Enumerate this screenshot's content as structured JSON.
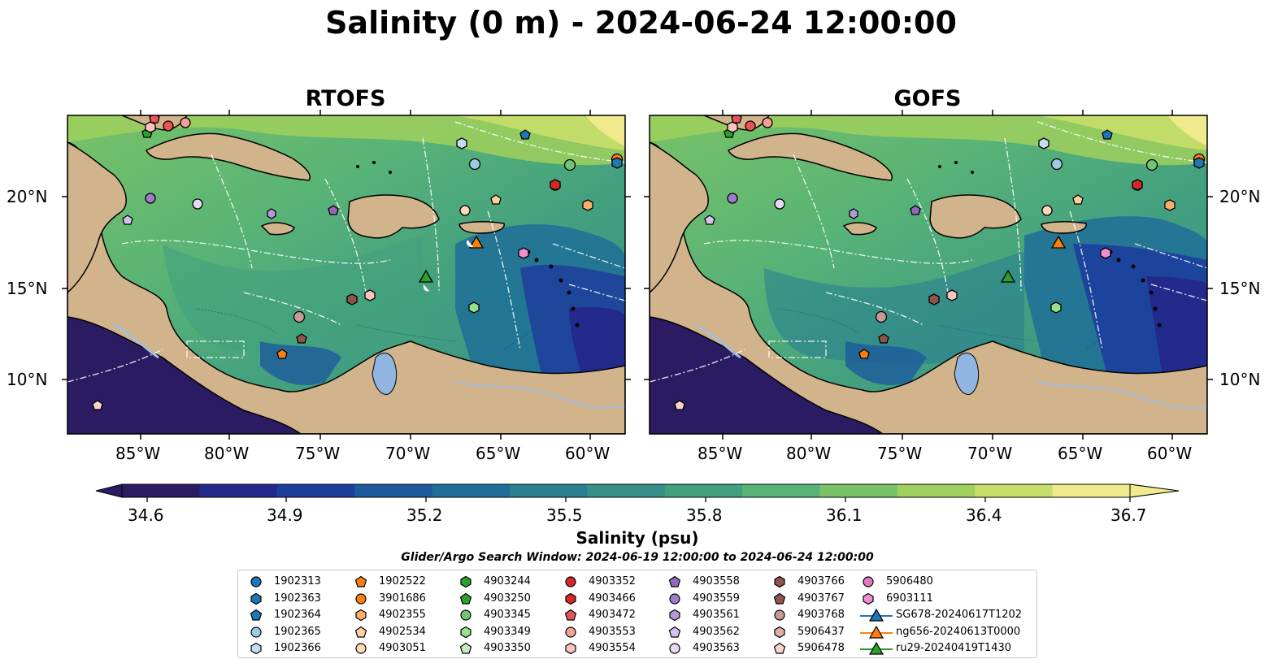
{
  "title": "Salinity (0 m) - 2024-06-24 12:00:00",
  "panels": [
    {
      "title": "RTOFS"
    },
    {
      "title": "GOFS"
    }
  ],
  "axes": {
    "lon_ticks": [
      "85°W",
      "80°W",
      "75°W",
      "70°W",
      "65°W",
      "60°W"
    ],
    "lat_ticks": [
      "20°N",
      "15°N",
      "10°N"
    ]
  },
  "colorbar": {
    "label": "Salinity (psu)",
    "ticks": [
      "34.6",
      "34.9",
      "35.2",
      "35.5",
      "35.8",
      "36.1",
      "36.4",
      "36.7"
    ],
    "min": 34.6,
    "max": 36.7
  },
  "search_window": "Glider/Argo Search Window: 2024-06-19 12:00:00 to 2024-06-24 12:00:00",
  "legend": {
    "columns": [
      [
        {
          "label": "1902313",
          "marker": "circle",
          "color": "#1f77b4"
        },
        {
          "label": "1902363",
          "marker": "hexagon",
          "color": "#1f77b4"
        },
        {
          "label": "1902364",
          "marker": "pentagon",
          "color": "#1f77b4"
        },
        {
          "label": "1902365",
          "marker": "circle",
          "color": "#9ecae1"
        },
        {
          "label": "1902366",
          "marker": "hexagon",
          "color": "#c6dbef"
        }
      ],
      [
        {
          "label": "1902522",
          "marker": "pentagon",
          "color": "#ff7f0e"
        },
        {
          "label": "3901686",
          "marker": "circle",
          "color": "#ff7f0e"
        },
        {
          "label": "4902355",
          "marker": "hexagon",
          "color": "#fdae6b"
        },
        {
          "label": "4902534",
          "marker": "pentagon",
          "color": "#fdd0a2"
        },
        {
          "label": "4903051",
          "marker": "circle",
          "color": "#fdd9b5"
        }
      ],
      [
        {
          "label": "4903244",
          "marker": "hexagon",
          "color": "#2ca02c"
        },
        {
          "label": "4903250",
          "marker": "pentagon",
          "color": "#2ca02c"
        },
        {
          "label": "4903345",
          "marker": "circle",
          "color": "#74c476"
        },
        {
          "label": "4903349",
          "marker": "hexagon",
          "color": "#98df8a"
        },
        {
          "label": "4903350",
          "marker": "pentagon",
          "color": "#c7e9c0"
        }
      ],
      [
        {
          "label": "4903352",
          "marker": "circle",
          "color": "#d62728"
        },
        {
          "label": "4903466",
          "marker": "hexagon",
          "color": "#d62728"
        },
        {
          "label": "4903472",
          "marker": "pentagon",
          "color": "#e6555a"
        },
        {
          "label": "4903553",
          "marker": "circle",
          "color": "#f4a09a"
        },
        {
          "label": "4903554",
          "marker": "hexagon",
          "color": "#fcc5c0"
        }
      ],
      [
        {
          "label": "4903558",
          "marker": "pentagon",
          "color": "#9467bd"
        },
        {
          "label": "4903559",
          "marker": "circle",
          "color": "#9e7cc6"
        },
        {
          "label": "4903561",
          "marker": "hexagon",
          "color": "#b69ad8"
        },
        {
          "label": "4903562",
          "marker": "pentagon",
          "color": "#d4c2ee"
        },
        {
          "label": "4903563",
          "marker": "circle",
          "color": "#e5d9f6"
        }
      ],
      [
        {
          "label": "4903766",
          "marker": "hexagon",
          "color": "#8c564b"
        },
        {
          "label": "4903767",
          "marker": "pentagon",
          "color": "#8c564b"
        },
        {
          "label": "4903768",
          "marker": "circle",
          "color": "#c49c94"
        },
        {
          "label": "5906437",
          "marker": "hexagon",
          "color": "#dfb0a5"
        },
        {
          "label": "5906478",
          "marker": "pentagon",
          "color": "#f7d5cc"
        }
      ],
      [
        {
          "label": "5906480",
          "marker": "circle",
          "color": "#e377c2"
        },
        {
          "label": "6903111",
          "marker": "hexagon",
          "color": "#f08fd0"
        },
        {
          "label": "SG678-20240617T1202",
          "marker": "triangle-line",
          "color": "#1f77b4"
        },
        {
          "label": "ng656-20240613T0000",
          "marker": "triangle-line",
          "color": "#ff7f0e"
        },
        {
          "label": "ru29-20240419T1430",
          "marker": "triangle-line",
          "color": "#2ca02c"
        }
      ]
    ]
  },
  "colors": {
    "land": "#d2b48c",
    "lake": "#8fb5e0",
    "river": "#a6bddb",
    "salinity_ramp": [
      "#2a1b63",
      "#242a8c",
      "#1d3f9c",
      "#1b5a9c",
      "#1f6e98",
      "#2a8090",
      "#349088",
      "#43a07f",
      "#58b377",
      "#79c267",
      "#9fd05d",
      "#c8de6a",
      "#f0ea8c"
    ]
  }
}
